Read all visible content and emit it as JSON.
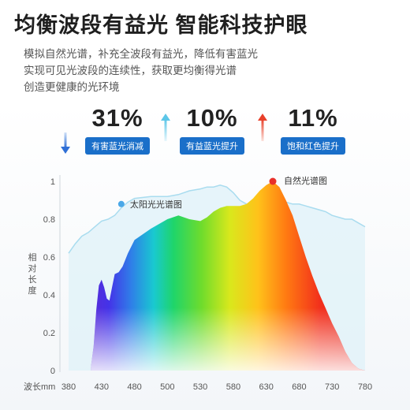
{
  "title": "均衡波段有益光 智能科技护眼",
  "description": [
    "模拟自然光谱，补充全波段有益光，降低有害蓝光",
    "实现可见光波段的连续性，获取更均衡得光谱",
    "创造更健康的光环境"
  ],
  "stats": [
    {
      "value": "31%",
      "label": "有害蓝光消减",
      "direction": "down",
      "arrow_color": "#2f6fd6"
    },
    {
      "value": "10%",
      "label": "有益蓝光提升",
      "direction": "up",
      "arrow_color": "#5cc6e8"
    },
    {
      "value": "11%",
      "label": "饱和红色提升",
      "direction": "up",
      "arrow_color": "#e8402a"
    }
  ],
  "colors": {
    "badge": "#1a6fc9",
    "sun_curve": "#a9dcef",
    "sun_fill": "#dff1f8",
    "sun_dot": "#4aa8e8",
    "natural_dot": "#e8302a"
  },
  "chart_data": {
    "type": "area",
    "ylabel": "相对长度",
    "xlabel": "波长mm",
    "x_ticks": [
      "380",
      "430",
      "480",
      "500",
      "530",
      "580",
      "630",
      "680",
      "730",
      "780"
    ],
    "y_ticks": [
      "0",
      "0.2",
      "0.4",
      "0.6",
      "0.8",
      "1"
    ],
    "ylim": [
      0,
      1
    ],
    "series": [
      {
        "name": "太阳光光谱图",
        "x": [
          380,
          390,
          400,
          410,
          420,
          430,
          440,
          450,
          460,
          470,
          480,
          490,
          500,
          510,
          520,
          530,
          540,
          550,
          560,
          570,
          580,
          590,
          600,
          610,
          620,
          630,
          640,
          650,
          660,
          670,
          680,
          690,
          700,
          710,
          720,
          730,
          740,
          750,
          760,
          770,
          780
        ],
        "y": [
          0.62,
          0.67,
          0.71,
          0.73,
          0.76,
          0.79,
          0.8,
          0.82,
          0.86,
          0.89,
          0.91,
          0.92,
          0.92,
          0.93,
          0.95,
          0.96,
          0.97,
          0.97,
          0.98,
          0.97,
          0.94,
          0.9,
          0.88,
          0.89,
          0.9,
          0.91,
          0.91,
          0.9,
          0.89,
          0.88,
          0.88,
          0.87,
          0.86,
          0.85,
          0.84,
          0.82,
          0.81,
          0.8,
          0.8,
          0.78,
          0.76
        ]
      },
      {
        "name": "自然光谱图",
        "x": [
          414,
          418,
          422,
          426,
          430,
          434,
          438,
          442,
          446,
          450,
          456,
          462,
          470,
          480,
          490,
          500,
          510,
          520,
          530,
          540,
          550,
          560,
          570,
          580,
          590,
          600,
          610,
          620,
          630,
          640,
          650,
          660,
          670,
          680,
          690,
          700,
          710,
          720,
          730,
          740,
          750,
          760,
          770,
          780
        ],
        "y": [
          0.02,
          0.13,
          0.32,
          0.45,
          0.48,
          0.44,
          0.38,
          0.37,
          0.44,
          0.51,
          0.52,
          0.55,
          0.62,
          0.69,
          0.75,
          0.8,
          0.82,
          0.8,
          0.79,
          0.81,
          0.84,
          0.86,
          0.87,
          0.87,
          0.87,
          0.88,
          0.91,
          0.95,
          0.98,
          1.0,
          0.97,
          0.9,
          0.82,
          0.71,
          0.6,
          0.5,
          0.41,
          0.33,
          0.25,
          0.18,
          0.1,
          0.04,
          0.01,
          0.0
        ]
      }
    ]
  }
}
